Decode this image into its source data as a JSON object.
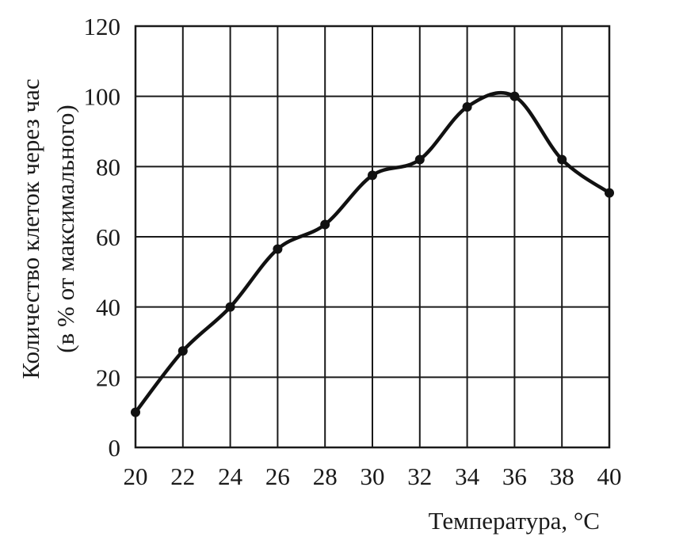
{
  "chart_data": {
    "type": "line",
    "xlabel": "Температура, °C",
    "ylabel": [
      "Количество клеток через час",
      "(в % от максимального)"
    ],
    "xlim": [
      20,
      40
    ],
    "ylim": [
      0,
      120
    ],
    "x_ticks": [
      20,
      22,
      24,
      26,
      28,
      30,
      32,
      34,
      36,
      38,
      40
    ],
    "y_ticks": [
      0,
      20,
      40,
      60,
      80,
      100,
      120
    ],
    "grid": true,
    "smooth": true,
    "points": [
      {
        "x": 20,
        "y": 10
      },
      {
        "x": 22,
        "y": 27.5
      },
      {
        "x": 24,
        "y": 40
      },
      {
        "x": 26,
        "y": 56.5
      },
      {
        "x": 28,
        "y": 63.5
      },
      {
        "x": 30,
        "y": 77.5
      },
      {
        "x": 32,
        "y": 82
      },
      {
        "x": 34,
        "y": 97
      },
      {
        "x": 36,
        "y": 100
      },
      {
        "x": 38,
        "y": 82
      },
      {
        "x": 40,
        "y": 72.5
      }
    ],
    "colors": {
      "line": "#111111",
      "grid": "#1a1a1a"
    }
  }
}
